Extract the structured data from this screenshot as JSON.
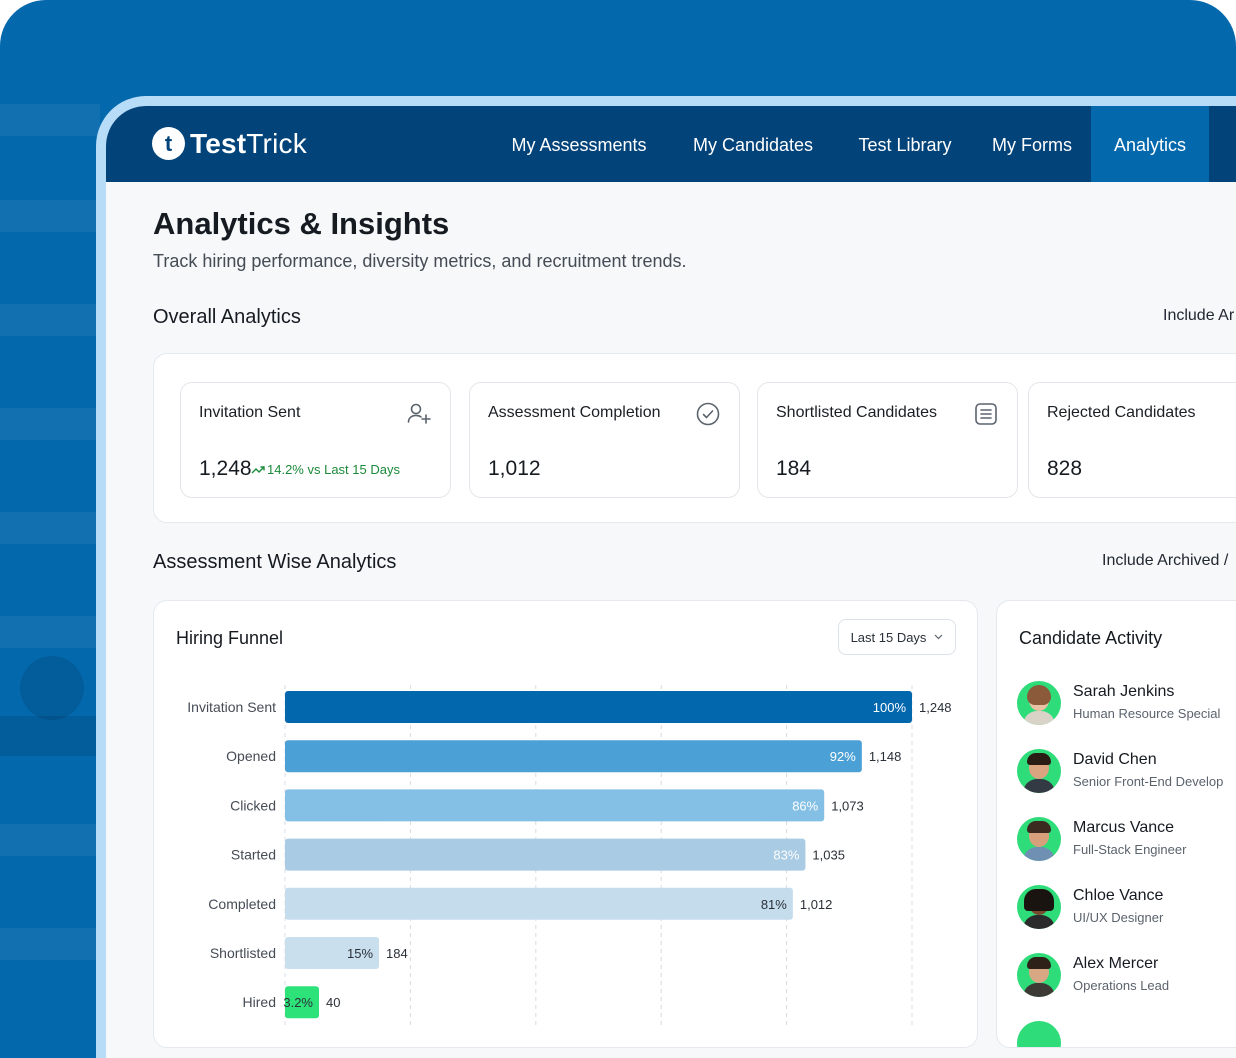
{
  "brand": {
    "mark": "t",
    "name_bold": "Test",
    "name_light": "Trick"
  },
  "nav": {
    "items": [
      {
        "label": "My Assessments"
      },
      {
        "label": "My Candidates"
      },
      {
        "label": "Test Library"
      },
      {
        "label": "My Forms"
      },
      {
        "label": "Analytics",
        "active": true
      }
    ]
  },
  "page": {
    "title": "Analytics & Insights",
    "subtitle": "Track hiring performance, diversity metrics, and recruitment trends."
  },
  "overall": {
    "title": "Overall Analytics",
    "right_text": "Include Ar",
    "cards": [
      {
        "label": "Invitation Sent",
        "value": "1,248",
        "trend": "14.2% vs Last 15 Days",
        "icon": "user-plus-icon"
      },
      {
        "label": "Assessment Completion",
        "value": "1,012",
        "icon": "check-circle-icon"
      },
      {
        "label": "Shortlisted Candidates",
        "value": "184",
        "icon": "list-icon"
      },
      {
        "label": "Rejected Candidates",
        "value": "828",
        "icon": "none"
      }
    ]
  },
  "assessment": {
    "title": "Assessment Wise Analytics",
    "right_text": "Include Archived /"
  },
  "funnel": {
    "title": "Hiring Funnel",
    "range": "Last 15 Days"
  },
  "chart_data": {
    "type": "bar",
    "orientation": "horizontal",
    "title": "Hiring Funnel",
    "categories": [
      "Invitation Sent",
      "Opened",
      "Clicked",
      "Started",
      "Completed",
      "Shortlisted",
      "Hired"
    ],
    "percent": [
      100,
      92,
      86,
      83,
      81,
      15,
      3.2
    ],
    "percent_labels": [
      "100%",
      "92%",
      "86%",
      "83%",
      "81%",
      "15%",
      "3.2%"
    ],
    "values": [
      1248,
      1148,
      1073,
      1035,
      1012,
      184,
      40
    ],
    "value_labels": [
      "1,248",
      "1,148",
      "1,073",
      "1,035",
      "1,012",
      "184",
      "40"
    ],
    "colors": [
      "#0367ad",
      "#4ba0d6",
      "#84c0e5",
      "#a9cbe3",
      "#c5dced",
      "#c9dfee",
      "#2ee27a"
    ],
    "xlim": [
      0,
      100
    ],
    "grid": true
  },
  "activity": {
    "title": "Candidate Activity",
    "people": [
      {
        "name": "Sarah Jenkins",
        "role": "Human Resource Special"
      },
      {
        "name": "David Chen",
        "role": "Senior Front-End Develop"
      },
      {
        "name": "Marcus Vance",
        "role": "Full-Stack Engineer"
      },
      {
        "name": "Chloe Vance",
        "role": "UI/UX Designer"
      },
      {
        "name": "Alex Mercer",
        "role": "Operations Lead"
      }
    ]
  }
}
